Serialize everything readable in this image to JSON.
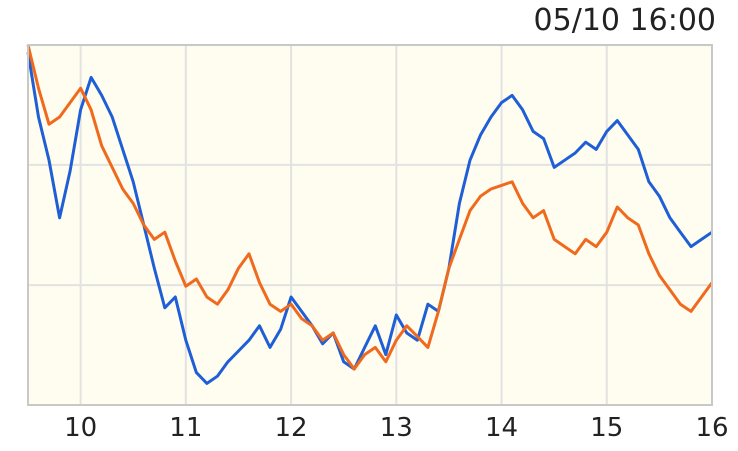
{
  "chart_data": {
    "type": "line",
    "timestamp": "05/10 16:00",
    "x_tick_labels": [
      "10",
      "11",
      "12",
      "13",
      "14",
      "15",
      "16"
    ],
    "xlim": [
      9.5,
      16
    ],
    "ylim": [
      0,
      100
    ],
    "y_gridlines": [
      33.3,
      66.7
    ],
    "grid": true,
    "background": "#FFFDF0",
    "series": [
      {
        "color": "#1F5FD6",
        "x": [
          9.5,
          9.6,
          9.7,
          9.8,
          9.9,
          10.0,
          10.1,
          10.2,
          10.3,
          10.4,
          10.5,
          10.6,
          10.7,
          10.8,
          10.9,
          11.0,
          11.1,
          11.2,
          11.3,
          11.4,
          11.5,
          11.6,
          11.7,
          11.8,
          11.9,
          12.0,
          12.1,
          12.2,
          12.3,
          12.4,
          12.5,
          12.6,
          12.7,
          12.8,
          12.9,
          13.0,
          13.1,
          13.2,
          13.3,
          13.4,
          13.5,
          13.6,
          13.7,
          13.8,
          13.9,
          14.0,
          14.1,
          14.2,
          14.3,
          14.4,
          14.5,
          14.6,
          14.7,
          14.8,
          14.9,
          15.0,
          15.1,
          15.2,
          15.3,
          15.4,
          15.5,
          15.6,
          15.7,
          15.8,
          15.9,
          16.0
        ],
        "values": [
          98,
          80,
          68,
          52,
          65,
          82,
          91,
          86,
          80,
          71,
          62,
          50,
          38,
          27,
          30,
          18,
          9,
          6,
          8,
          12,
          15,
          18,
          22,
          16,
          21,
          30,
          26,
          22,
          17,
          20,
          12,
          10,
          16,
          22,
          14,
          25,
          20,
          18,
          28,
          26,
          38,
          56,
          68,
          75,
          80,
          84,
          86,
          82,
          76,
          74,
          66,
          68,
          70,
          73,
          71,
          76,
          79,
          75,
          71,
          62,
          58,
          52,
          48,
          44,
          46,
          48
        ]
      },
      {
        "color": "#F06A1E",
        "x": [
          9.5,
          9.6,
          9.7,
          9.8,
          9.9,
          10.0,
          10.1,
          10.2,
          10.3,
          10.4,
          10.5,
          10.6,
          10.7,
          10.8,
          10.9,
          11.0,
          11.1,
          11.2,
          11.3,
          11.4,
          11.5,
          11.6,
          11.7,
          11.8,
          11.9,
          12.0,
          12.1,
          12.2,
          12.3,
          12.4,
          12.5,
          12.6,
          12.7,
          12.8,
          12.9,
          13.0,
          13.1,
          13.2,
          13.3,
          13.4,
          13.5,
          13.6,
          13.7,
          13.8,
          13.9,
          14.0,
          14.1,
          14.2,
          14.3,
          14.4,
          14.5,
          14.6,
          14.7,
          14.8,
          14.9,
          15.0,
          15.1,
          15.2,
          15.3,
          15.4,
          15.5,
          15.6,
          15.7,
          15.8,
          15.9,
          16.0
        ],
        "values": [
          100,
          88,
          78,
          80,
          84,
          88,
          82,
          72,
          66,
          60,
          56,
          50,
          46,
          48,
          40,
          33,
          35,
          30,
          28,
          32,
          38,
          42,
          34,
          28,
          26,
          28,
          24,
          22,
          18,
          20,
          14,
          10,
          14,
          16,
          12,
          18,
          22,
          19,
          16,
          26,
          38,
          46,
          54,
          58,
          60,
          61,
          62,
          56,
          52,
          54,
          46,
          44,
          42,
          46,
          44,
          48,
          55,
          52,
          50,
          42,
          36,
          32,
          28,
          26,
          30,
          34
        ]
      }
    ]
  }
}
